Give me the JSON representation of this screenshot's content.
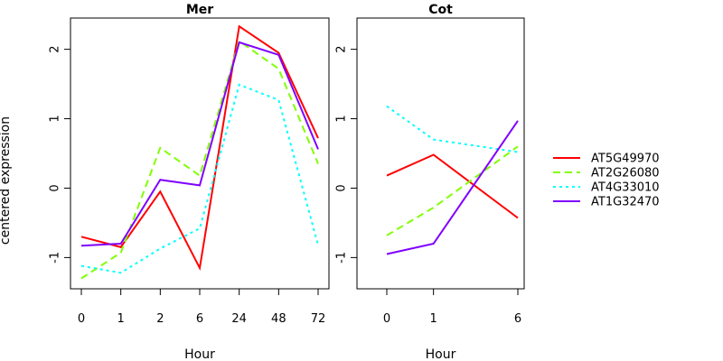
{
  "figure": {
    "ylabel": "centered expression"
  },
  "legend": [
    {
      "name": "AT5G49970",
      "color": "#ff0000",
      "dash": "solid"
    },
    {
      "name": "AT2G26080",
      "color": "#80ff00",
      "dash": "dashed"
    },
    {
      "name": "AT4G33010",
      "color": "#00ffff",
      "dash": "dotted"
    },
    {
      "name": "AT1G32470",
      "color": "#8000ff",
      "dash": "solid"
    }
  ],
  "chart_data": [
    {
      "type": "line",
      "title": "Mer",
      "xlabel": "Hour",
      "ylabel": "centered expression",
      "categories": [
        "0",
        "1",
        "2",
        "6",
        "24",
        "48",
        "72"
      ],
      "ylim": [
        -1.45,
        2.45
      ],
      "yticks": [
        "-1",
        "0",
        "1",
        "2"
      ],
      "series": [
        {
          "name": "AT5G49970",
          "values": [
            -0.7,
            -0.85,
            -0.05,
            -1.15,
            2.33,
            1.95,
            0.72
          ]
        },
        {
          "name": "AT2G26080",
          "values": [
            -1.3,
            -0.93,
            0.58,
            0.18,
            2.12,
            1.72,
            0.35
          ]
        },
        {
          "name": "AT4G33010",
          "values": [
            -1.12,
            -1.22,
            -0.87,
            -0.58,
            1.49,
            1.27,
            -0.82
          ]
        },
        {
          "name": "AT1G32470",
          "values": [
            -0.83,
            -0.8,
            0.12,
            0.04,
            2.1,
            1.92,
            0.56
          ]
        }
      ]
    },
    {
      "type": "line",
      "title": "Cot",
      "xlabel": "Hour",
      "ylabel": "",
      "categories": [
        "0",
        "1",
        "6"
      ],
      "ylim": [
        -1.45,
        2.45
      ],
      "yticks": [
        "-1",
        "0",
        "1",
        "2"
      ],
      "series": [
        {
          "name": "AT5G49970",
          "values": [
            0.18,
            0.48,
            -0.43
          ]
        },
        {
          "name": "AT2G26080",
          "values": [
            -0.68,
            -0.28,
            0.6
          ]
        },
        {
          "name": "AT4G33010",
          "values": [
            1.18,
            0.7,
            0.52
          ]
        },
        {
          "name": "AT1G32470",
          "values": [
            -0.95,
            -0.8,
            0.97
          ]
        }
      ]
    }
  ]
}
